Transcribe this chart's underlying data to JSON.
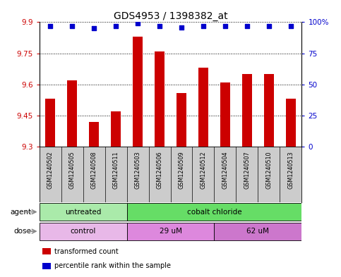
{
  "title": "GDS4953 / 1398382_at",
  "samples": [
    "GSM1240502",
    "GSM1240505",
    "GSM1240508",
    "GSM1240511",
    "GSM1240503",
    "GSM1240506",
    "GSM1240509",
    "GSM1240512",
    "GSM1240504",
    "GSM1240507",
    "GSM1240510",
    "GSM1240513"
  ],
  "bar_values": [
    9.53,
    9.62,
    9.42,
    9.47,
    9.83,
    9.76,
    9.56,
    9.68,
    9.61,
    9.65,
    9.65,
    9.53
  ],
  "percentile_values": [
    97,
    97,
    95,
    97,
    99,
    97,
    96,
    97,
    97,
    97,
    97,
    97
  ],
  "bar_color": "#cc0000",
  "dot_color": "#0000cc",
  "ylim_left": [
    9.3,
    9.9
  ],
  "ylim_right": [
    0,
    100
  ],
  "yticks_left": [
    9.3,
    9.45,
    9.6,
    9.75,
    9.9
  ],
  "yticks_right": [
    0,
    25,
    50,
    75,
    100
  ],
  "ytick_labels_right": [
    "0",
    "25",
    "50",
    "75",
    "100%"
  ],
  "agent_groups": [
    {
      "label": "untreated",
      "start": 0,
      "end": 4,
      "color": "#aaeaaa"
    },
    {
      "label": "cobalt chloride",
      "start": 4,
      "end": 12,
      "color": "#66dd66"
    }
  ],
  "dose_groups": [
    {
      "label": "control",
      "start": 0,
      "end": 4,
      "color": "#e8b8e8"
    },
    {
      "label": "29 uM",
      "start": 4,
      "end": 8,
      "color": "#dd88dd"
    },
    {
      "label": "62 uM",
      "start": 8,
      "end": 12,
      "color": "#cc77cc"
    }
  ],
  "legend_items": [
    {
      "label": "transformed count",
      "color": "#cc0000"
    },
    {
      "label": "percentile rank within the sample",
      "color": "#0000cc"
    }
  ],
  "background_color": "#ffffff",
  "plot_bg": "#ffffff",
  "bar_width": 0.45,
  "sample_bg_color": "#cccccc",
  "arrow_color": "#888888"
}
